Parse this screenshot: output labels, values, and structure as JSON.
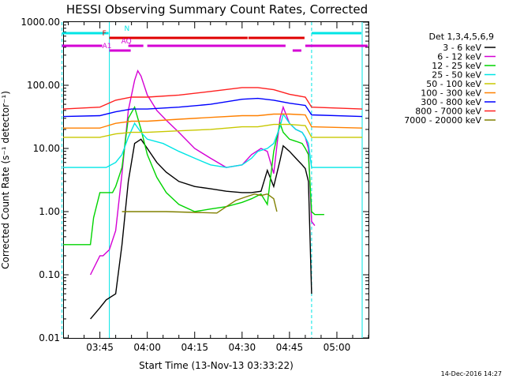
{
  "chart_data": {
    "type": "line",
    "title": "HESSI Observing Summary Count Rates, Corrected",
    "xlabel": "Start Time (13-Nov-13 03:33:22)",
    "ylabel": "Corrected Count Rate (s⁻¹ detector⁻¹)",
    "yscale": "log",
    "ylim": [
      0.01,
      1000
    ],
    "xlim": [
      "03:33:22",
      "05:10:00"
    ],
    "grid": false,
    "legend_position": "right",
    "x_ticks": [
      "03:45",
      "04:00",
      "04:15",
      "04:30",
      "04:45",
      "05:00"
    ],
    "y_ticks": [
      "0.01",
      "0.10",
      "1.00",
      "10.00",
      "100.00",
      "1000.00"
    ],
    "legend_title": "Det 1,3,4,5,6,9",
    "timestamp": "14-Dec-2016 14:27",
    "series": [
      {
        "name": "3 - 6 keV",
        "color": "#000000",
        "x": [
          "03:42",
          "03:45",
          "03:47",
          "03:50",
          "03:52",
          "03:54",
          "03:56",
          "03:58",
          "04:00",
          "04:03",
          "04:06",
          "04:10",
          "04:15",
          "04:20",
          "04:25",
          "04:30",
          "04:33",
          "04:36",
          "04:38",
          "04:40",
          "04:42",
          "04:43",
          "04:45",
          "04:47",
          "04:49",
          "04:50",
          "04:51",
          "04:52"
        ],
        "values": [
          0.02,
          0.03,
          0.04,
          0.05,
          0.3,
          3.0,
          12.0,
          14.0,
          10.0,
          6.0,
          4.2,
          3.0,
          2.5,
          2.3,
          2.1,
          2.0,
          2.0,
          2.1,
          4.5,
          2.5,
          6.5,
          11.0,
          9.0,
          7.0,
          5.5,
          4.8,
          3.0,
          0.05
        ]
      },
      {
        "name": "6 - 12 keV",
        "color": "#d400d4",
        "x": [
          "03:42",
          "03:45",
          "03:46",
          "03:48",
          "03:50",
          "03:52",
          "03:54",
          "03:56",
          "03:57",
          "03:58",
          "04:00",
          "04:03",
          "04:06",
          "04:10",
          "04:15",
          "04:20",
          "04:25",
          "04:30",
          "04:33",
          "04:36",
          "04:38",
          "04:40",
          "04:42",
          "04:43",
          "04:45",
          "04:47",
          "04:49",
          "04:50",
          "04:51",
          "04:52",
          "04:53"
        ],
        "values": [
          0.1,
          0.2,
          0.2,
          0.25,
          0.5,
          4.0,
          40.0,
          120.0,
          170.0,
          140.0,
          70.0,
          40.0,
          28.0,
          18.0,
          10.0,
          7.0,
          5.0,
          5.5,
          8.0,
          10.0,
          9.0,
          4.0,
          30.0,
          45.0,
          25.0,
          20.0,
          18.0,
          15.0,
          10.0,
          0.7,
          0.6
        ]
      },
      {
        "name": "12 - 25 keV",
        "color": "#00d400",
        "x": [
          "03:33",
          "03:42",
          "03:43",
          "03:45",
          "03:47",
          "03:49",
          "03:50",
          "03:52",
          "03:54",
          "03:56",
          "03:58",
          "04:00",
          "04:03",
          "04:06",
          "04:10",
          "04:15",
          "04:20",
          "04:25",
          "04:30",
          "04:33",
          "04:36",
          "04:38",
          "04:40",
          "04:42",
          "04:43",
          "04:45",
          "04:47",
          "04:49",
          "04:50",
          "04:51",
          "04:52",
          "04:53",
          "04:56"
        ],
        "values": [
          0.3,
          0.3,
          0.8,
          2.0,
          2.0,
          2.0,
          2.5,
          5.0,
          30.0,
          45.0,
          20.0,
          8.0,
          3.5,
          2.0,
          1.3,
          1.0,
          1.1,
          1.2,
          1.4,
          1.6,
          1.9,
          1.3,
          9.0,
          25.0,
          18.0,
          14.0,
          13.0,
          12.0,
          10.0,
          8.0,
          1.0,
          0.9,
          0.9
        ]
      },
      {
        "name": "25 - 50 keV",
        "color": "#00e5e5",
        "x": [
          "03:33",
          "03:45",
          "03:47",
          "03:50",
          "03:52",
          "03:54",
          "03:56",
          "03:58",
          "04:00",
          "04:05",
          "04:10",
          "04:15",
          "04:20",
          "04:25",
          "04:30",
          "04:33",
          "04:35",
          "04:38",
          "04:40",
          "04:42",
          "04:43",
          "04:45",
          "04:47",
          "04:49",
          "04:50",
          "04:51",
          "04:52",
          "05:08"
        ],
        "values": [
          5.0,
          5.0,
          5.0,
          6.0,
          8.0,
          15.0,
          25.0,
          18.0,
          14.0,
          12.0,
          9.0,
          7.0,
          5.5,
          5.0,
          5.5,
          7.0,
          9.0,
          10.0,
          12.0,
          22.0,
          35.0,
          25.0,
          20.0,
          18.0,
          15.0,
          12.0,
          5.0,
          5.0
        ]
      },
      {
        "name": "50 - 100 keV",
        "color": "#c8c800",
        "x": [
          "03:33",
          "03:45",
          "03:50",
          "03:55",
          "04:00",
          "04:10",
          "04:20",
          "04:30",
          "04:35",
          "04:40",
          "04:45",
          "04:50",
          "04:52",
          "05:08"
        ],
        "values": [
          15.0,
          15.0,
          17.0,
          18.0,
          18.0,
          19.0,
          20.0,
          22.0,
          22.0,
          24.0,
          24.0,
          23.0,
          15.0,
          15.0
        ]
      },
      {
        "name": "100 - 300 keV",
        "color": "#ff8000",
        "x": [
          "03:33",
          "03:45",
          "03:50",
          "03:55",
          "04:00",
          "04:10",
          "04:20",
          "04:30",
          "04:35",
          "04:40",
          "04:45",
          "04:50",
          "04:52",
          "05:08"
        ],
        "values": [
          21.0,
          21.0,
          25.0,
          27.0,
          27.0,
          29.0,
          31.0,
          33.0,
          33.0,
          35.0,
          35.0,
          34.0,
          22.0,
          21.0
        ]
      },
      {
        "name": "300 - 800 keV",
        "color": "#0000ff",
        "x": [
          "03:33",
          "03:45",
          "03:50",
          "03:55",
          "04:00",
          "04:10",
          "04:20",
          "04:30",
          "04:35",
          "04:40",
          "04:45",
          "04:50",
          "04:52",
          "05:08"
        ],
        "values": [
          32.0,
          33.0,
          38.0,
          42.0,
          42.0,
          45.0,
          50.0,
          60.0,
          62.0,
          58.0,
          52.0,
          48.0,
          34.0,
          32.0
        ]
      },
      {
        "name": "800 - 7000 keV",
        "color": "#ff2020",
        "x": [
          "03:33",
          "03:45",
          "03:50",
          "03:55",
          "04:00",
          "04:10",
          "04:20",
          "04:30",
          "04:35",
          "04:40",
          "04:45",
          "04:50",
          "04:52",
          "05:08"
        ],
        "values": [
          42.0,
          45.0,
          58.0,
          65.0,
          65.0,
          70.0,
          80.0,
          92.0,
          92.0,
          85.0,
          72.0,
          65.0,
          45.0,
          42.0
        ]
      },
      {
        "name": "7000 - 20000 keV",
        "color": "#808000",
        "x": [
          "03:52",
          "03:54",
          "03:56",
          "03:58",
          "04:00",
          "04:03",
          "04:06",
          "04:22",
          "04:25",
          "04:28",
          "04:31",
          "04:34",
          "04:36",
          "04:38",
          "04:40",
          "04:41"
        ],
        "values": [
          1.0,
          1.0,
          1.0,
          1.0,
          1.0,
          1.0,
          1.0,
          0.95,
          1.2,
          1.5,
          1.7,
          1.9,
          1.8,
          1.9,
          1.6,
          1.0
        ]
      }
    ],
    "flags": [
      {
        "label": "N",
        "color": "#00e5e5",
        "segments": [
          [
            "03:33",
            "03:48"
          ],
          [
            "04:52",
            "05:08"
          ]
        ]
      },
      {
        "label": "F",
        "color": "#e00000",
        "segments": [
          [
            "03:48",
            "04:32"
          ],
          [
            "04:32",
            "04:50"
          ]
        ]
      },
      {
        "label": "AQ",
        "color": "#d400d4",
        "segments": [
          [
            "03:54",
            "03:59"
          ]
        ]
      },
      {
        "label": "A1",
        "color": "#d400d4",
        "segments": [
          [
            "03:48",
            "03:55"
          ],
          [
            "04:46",
            "04:49"
          ]
        ]
      },
      {
        "label": "",
        "color": "#d400d4",
        "segments": [
          [
            "03:33",
            "03:46"
          ],
          [
            "04:00",
            "04:44"
          ],
          [
            "04:50",
            "05:10"
          ]
        ]
      }
    ]
  }
}
